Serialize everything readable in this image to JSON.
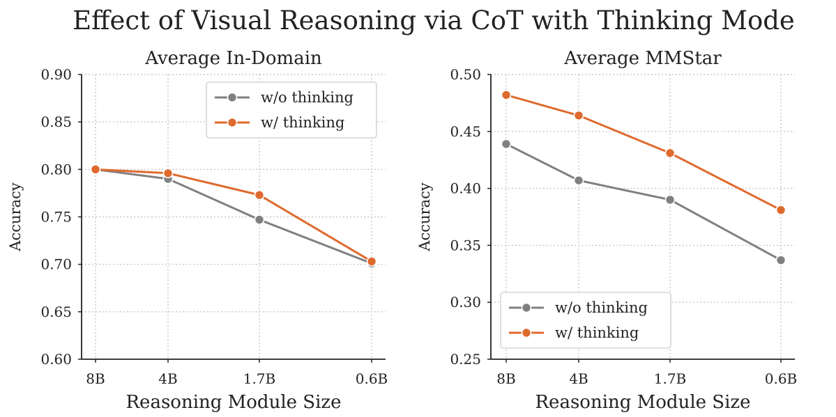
{
  "figure": {
    "title": "Effect of Visual Reasoning via CoT with Thinking Mode"
  },
  "colors": {
    "without": "#808080",
    "with": "#df6a2e",
    "grid": "#c8c8c8",
    "axis": "#222222"
  },
  "chart_data": [
    {
      "type": "line",
      "title": "Average In-Domain",
      "xlabel": "Reasoning Module Size",
      "ylabel": "Accuracy",
      "categories": [
        "8B",
        "4B",
        "1.7B",
        "0.6B"
      ],
      "x": [
        8,
        4,
        1.7,
        0.6
      ],
      "x_direction": "reversed",
      "ylim": [
        0.6,
        0.9
      ],
      "yticks": [
        0.6,
        0.65,
        0.7,
        0.75,
        0.8,
        0.85,
        0.9
      ],
      "ytick_labels": [
        "0.60",
        "0.65",
        "0.70",
        "0.75",
        "0.80",
        "0.85",
        "0.90"
      ],
      "grid": true,
      "legend_position": "top-right",
      "series": [
        {
          "name": "w/o thinking",
          "color_key": "without",
          "values": [
            0.8,
            0.79,
            0.747,
            0.701
          ]
        },
        {
          "name": "w/ thinking",
          "color_key": "with",
          "values": [
            0.8,
            0.796,
            0.773,
            0.703
          ]
        }
      ]
    },
    {
      "type": "line",
      "title": "Average MMStar",
      "xlabel": "Reasoning Module Size",
      "ylabel": "Accuracy",
      "categories": [
        "8B",
        "4B",
        "1.7B",
        "0.6B"
      ],
      "x": [
        8,
        4,
        1.7,
        0.6
      ],
      "x_direction": "reversed",
      "ylim": [
        0.25,
        0.5
      ],
      "yticks": [
        0.25,
        0.3,
        0.35,
        0.4,
        0.45,
        0.5
      ],
      "ytick_labels": [
        "0.25",
        "0.30",
        "0.35",
        "0.40",
        "0.45",
        "0.50"
      ],
      "grid": true,
      "legend_position": "bottom-left",
      "series": [
        {
          "name": "w/o thinking",
          "color_key": "without",
          "values": [
            0.439,
            0.407,
            0.39,
            0.337
          ]
        },
        {
          "name": "w/ thinking",
          "color_key": "with",
          "values": [
            0.482,
            0.464,
            0.431,
            0.381
          ]
        }
      ]
    }
  ]
}
